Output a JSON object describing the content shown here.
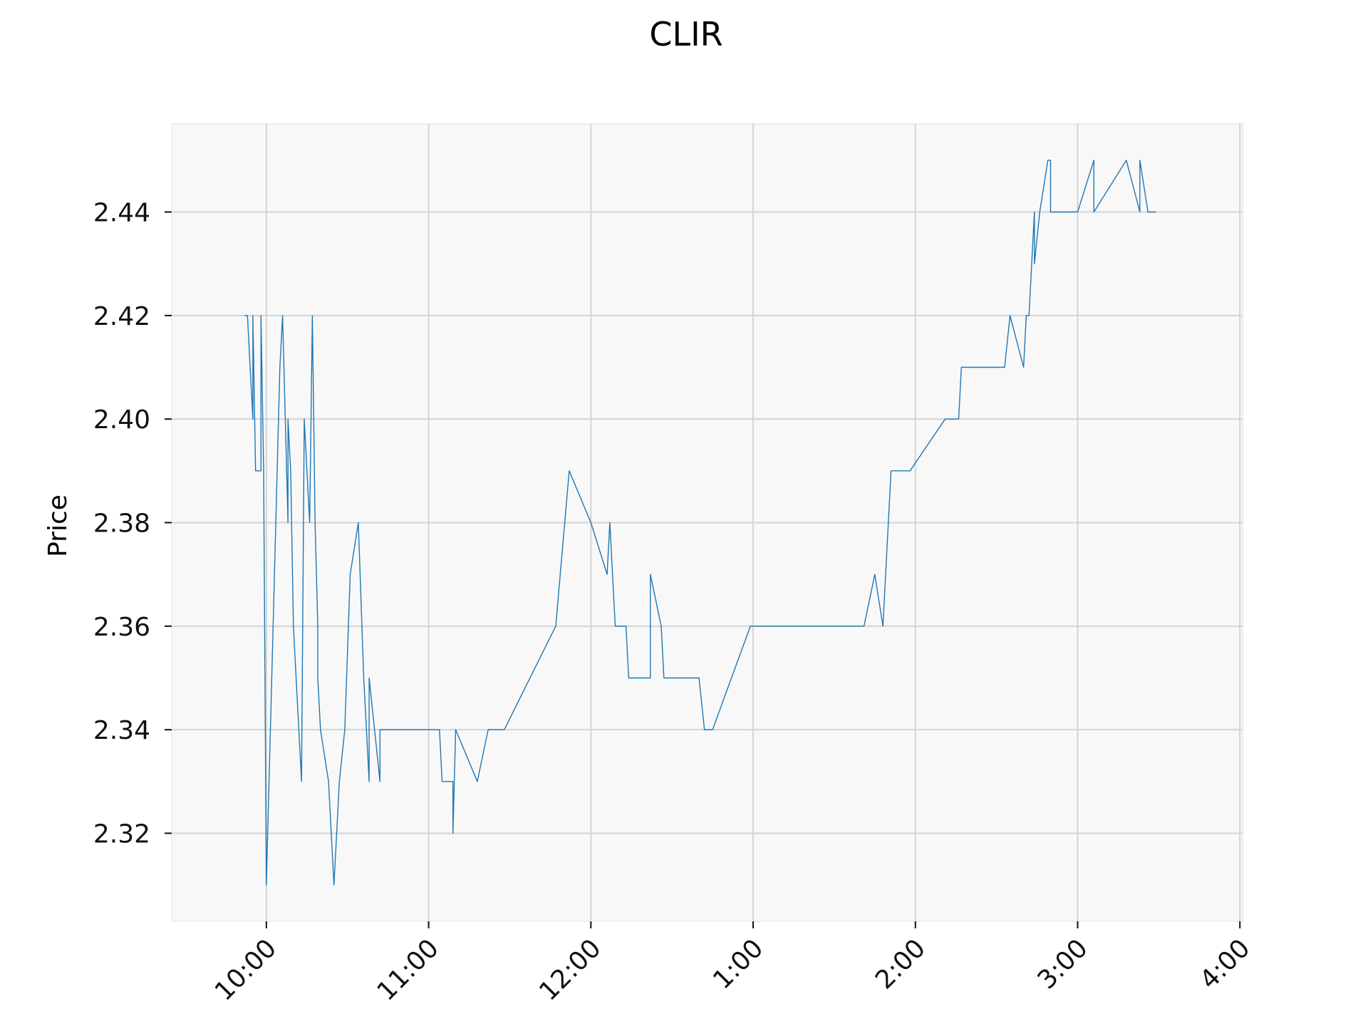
{
  "chart_data": {
    "type": "line",
    "title": "CLIR",
    "xlabel": "",
    "ylabel": "Price",
    "x_ticks": [
      "10:00",
      "11:00",
      "12:00",
      "1:00",
      "2:00",
      "3:00",
      "4:00"
    ],
    "y_ticks": [
      "2.32",
      "2.34",
      "2.36",
      "2.38",
      "2.40",
      "2.42",
      "2.44"
    ],
    "xlim": [
      "09:25",
      "16:01"
    ],
    "ylim": [
      2.303,
      2.457
    ],
    "grid": true,
    "colors": {
      "line": "#1f77b4",
      "plot_background": "#f8f8f8",
      "grid": "#d3d3d3"
    },
    "series": [
      {
        "x": [
          "09:52",
          "09:53",
          "09:55",
          "09:55",
          "09:56",
          "09:58",
          "09:58",
          "09:59",
          "10:00",
          "10:03",
          "10:05",
          "10:06",
          "10:07",
          "10:08",
          "10:08",
          "10:09",
          "10:10",
          "10:11",
          "10:13",
          "10:14",
          "10:16",
          "10:17",
          "10:18",
          "10:19",
          "10:19",
          "10:20",
          "10:23",
          "10:25",
          "10:26",
          "10:27",
          "10:29",
          "10:31",
          "10:34",
          "10:36",
          "10:38",
          "10:38",
          "10:40",
          "10:42",
          "10:42",
          "10:44",
          "10:46",
          "10:47",
          "10:48",
          "10:50",
          "10:51",
          "10:52",
          "11:04",
          "11:05",
          "11:09",
          "11:09",
          "11:10",
          "11:18",
          "11:22",
          "11:28",
          "11:47",
          "11:52",
          "12:00",
          "12:06",
          "12:07",
          "12:09",
          "12:13",
          "12:14",
          "12:22",
          "12:22",
          "12:26",
          "12:27",
          "12:40",
          "12:42",
          "12:45",
          "12:59",
          "13:00",
          "13:41",
          "13:45",
          "13:48",
          "13:49",
          "13:51",
          "13:52",
          "13:58",
          "14:11",
          "14:16",
          "14:17",
          "14:19",
          "14:33",
          "14:35",
          "14:40",
          "14:41",
          "14:42",
          "14:44",
          "14:44",
          "14:46",
          "14:49",
          "14:50",
          "14:50",
          "14:59",
          "15:00",
          "15:06",
          "15:06",
          "15:18",
          "15:23",
          "15:23",
          "15:26",
          "15:29"
        ],
        "values": [
          2.42,
          2.42,
          2.4,
          2.42,
          2.39,
          2.39,
          2.42,
          2.39,
          2.31,
          2.37,
          2.41,
          2.42,
          2.4,
          2.38,
          2.4,
          2.39,
          2.36,
          2.35,
          2.33,
          2.4,
          2.38,
          2.42,
          2.38,
          2.36,
          2.35,
          2.34,
          2.33,
          2.31,
          2.32,
          2.33,
          2.34,
          2.37,
          2.38,
          2.35,
          2.33,
          2.35,
          2.34,
          2.33,
          2.34,
          2.34,
          2.34,
          2.34,
          2.34,
          2.34,
          2.34,
          2.34,
          2.34,
          2.33,
          2.33,
          2.32,
          2.34,
          2.33,
          2.34,
          2.34,
          2.36,
          2.39,
          2.38,
          2.37,
          2.38,
          2.36,
          2.36,
          2.35,
          2.35,
          2.37,
          2.36,
          2.35,
          2.35,
          2.34,
          2.34,
          2.36,
          2.36,
          2.36,
          2.37,
          2.36,
          2.37,
          2.39,
          2.39,
          2.39,
          2.4,
          2.4,
          2.41,
          2.41,
          2.41,
          2.42,
          2.41,
          2.42,
          2.42,
          2.44,
          2.43,
          2.44,
          2.45,
          2.45,
          2.44,
          2.44,
          2.44,
          2.45,
          2.44,
          2.45,
          2.44,
          2.45,
          2.44,
          2.44
        ]
      }
    ]
  }
}
